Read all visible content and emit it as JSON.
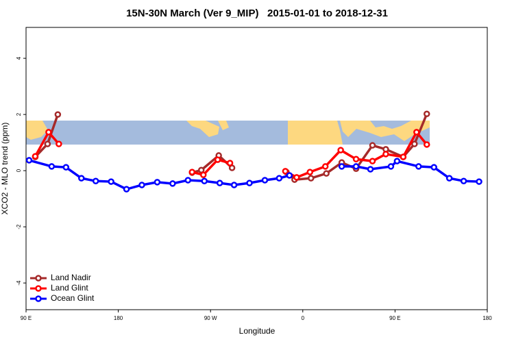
{
  "chart_data": {
    "type": "line",
    "title": "15N-30N March (Ver 9_MIP)   2015-01-01 to 2018-12-31",
    "xlabel": "Longitude",
    "ylabel": "XCO2 - MLO trend (ppm)",
    "xlim": [
      90,
      540
    ],
    "ylim": [
      -4.95,
      5.1
    ],
    "xticks": [
      {
        "value": 90,
        "label": "90 E"
      },
      180,
      {
        "value": 270,
        "label": "90 W"
      },
      {
        "value": 360,
        "label": "0"
      },
      {
        "value": 450,
        "label": "90 E"
      },
      {
        "value": 540,
        "label": "180"
      }
    ],
    "yticks": [
      -4,
      -2,
      0,
      2,
      4
    ],
    "legend": "bottom-left",
    "series": [
      {
        "name": "Land Nadir",
        "color": "#a52a2a",
        "x": [
          99,
          111,
          121,
          null,
          252,
          261,
          278,
          291,
          null,
          344,
          352,
          368,
          383,
          398,
          412,
          428,
          441,
          458,
          469,
          481
        ],
        "values": [
          0.49,
          0.95,
          2.0,
          null,
          -0.07,
          0.02,
          0.54,
          0.1,
          null,
          -0.05,
          -0.32,
          -0.27,
          -0.1,
          0.29,
          0.07,
          0.9,
          0.76,
          0.49,
          0.95,
          2.02
        ]
      },
      {
        "name": "Land Glint",
        "color": "#ff0000",
        "x": [
          99,
          112,
          122,
          null,
          252,
          263,
          277,
          289,
          null,
          343,
          354,
          367,
          382,
          397,
          412,
          428,
          441,
          458,
          471,
          481
        ],
        "values": [
          0.51,
          1.37,
          0.95,
          null,
          -0.05,
          -0.15,
          0.39,
          0.27,
          null,
          -0.02,
          -0.24,
          -0.05,
          0.15,
          0.73,
          0.41,
          0.34,
          0.59,
          0.49,
          1.37,
          0.93
        ]
      },
      {
        "name": "Ocean Glint",
        "color": "#0000ff",
        "x": [
          93,
          115,
          129,
          144,
          158,
          173,
          188,
          203,
          218,
          233,
          248,
          264,
          279,
          293,
          308,
          323,
          337,
          347,
          null,
          398,
          412,
          426,
          446,
          452,
          473,
          488,
          503,
          517,
          532
        ],
        "values": [
          0.37,
          0.15,
          0.12,
          -0.27,
          -0.37,
          -0.39,
          -0.66,
          -0.51,
          -0.41,
          -0.46,
          -0.34,
          -0.37,
          -0.44,
          -0.51,
          -0.44,
          -0.34,
          -0.27,
          -0.17,
          null,
          0.15,
          0.15,
          0.05,
          0.15,
          0.34,
          0.15,
          0.12,
          -0.27,
          -0.37,
          -0.39
        ]
      }
    ]
  }
}
